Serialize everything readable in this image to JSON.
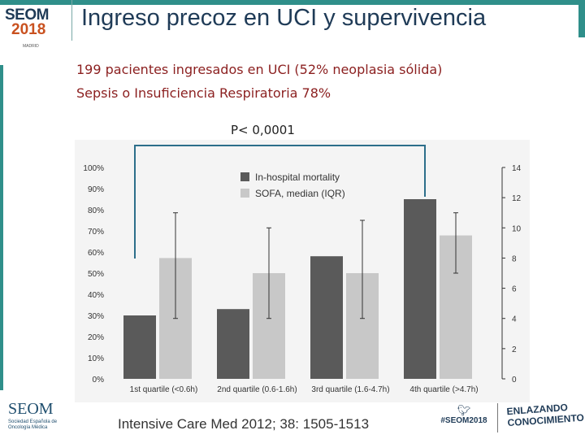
{
  "slide": {
    "title": "Ingreso precoz en UCI y supervivencia",
    "subtitle_line1": "199 pacientes ingresados en UCI (52% neoplasia sólida)",
    "subtitle_line2": "Sepsis o Insuficiencia Respiratoria 78%",
    "citation": "Intensive Care Med 2012; 38: 1505-1513"
  },
  "branding": {
    "logo_line1": "SEOM",
    "logo_line2": "2018",
    "logo_line3": "MADRID",
    "footer_logo_word": "SEOM",
    "footer_logo_sub": "Sociedad Española de Oncología Médica",
    "hashtag": "#SEOM2018",
    "hashtag_icon": "twitter-bird-icon",
    "tagline_line1": "ENLAZANDO",
    "tagline_line2": "CONOCIMIENTO",
    "accent_color": "#2f8f8a",
    "title_color": "#1f3b57",
    "subtitle_color": "#8b1f1f"
  },
  "chart_data": {
    "type": "bar",
    "annotation": "P< 0,0001",
    "categories": [
      "1st quartile (<0.6h)",
      "2nd quartile (0.6-1.6h)",
      "3rd quartile (1.6-4.7h)",
      "4th quartile (>4.7h)"
    ],
    "series": [
      {
        "name": "In-hospital mortality",
        "axis": "left",
        "color": "#5a5a5a",
        "values": [
          30,
          33,
          58,
          85
        ]
      },
      {
        "name": "SOFA, median (IQR)",
        "axis": "right",
        "color": "#c8c8c8",
        "values": [
          8,
          7,
          7,
          9.5
        ],
        "error_low": [
          4,
          4,
          4,
          7
        ],
        "error_high": [
          11,
          10,
          10.5,
          11
        ]
      }
    ],
    "y_left": {
      "ticks": [
        "0%",
        "10%",
        "20%",
        "30%",
        "40%",
        "50%",
        "60%",
        "70%",
        "80%",
        "90%",
        "100%"
      ],
      "lim": [
        0,
        100
      ]
    },
    "y_right": {
      "ticks": [
        "0",
        "2",
        "4",
        "6",
        "8",
        "10",
        "12",
        "14"
      ],
      "lim": [
        0,
        14
      ]
    },
    "grid": false,
    "legend_position": "top-center"
  }
}
